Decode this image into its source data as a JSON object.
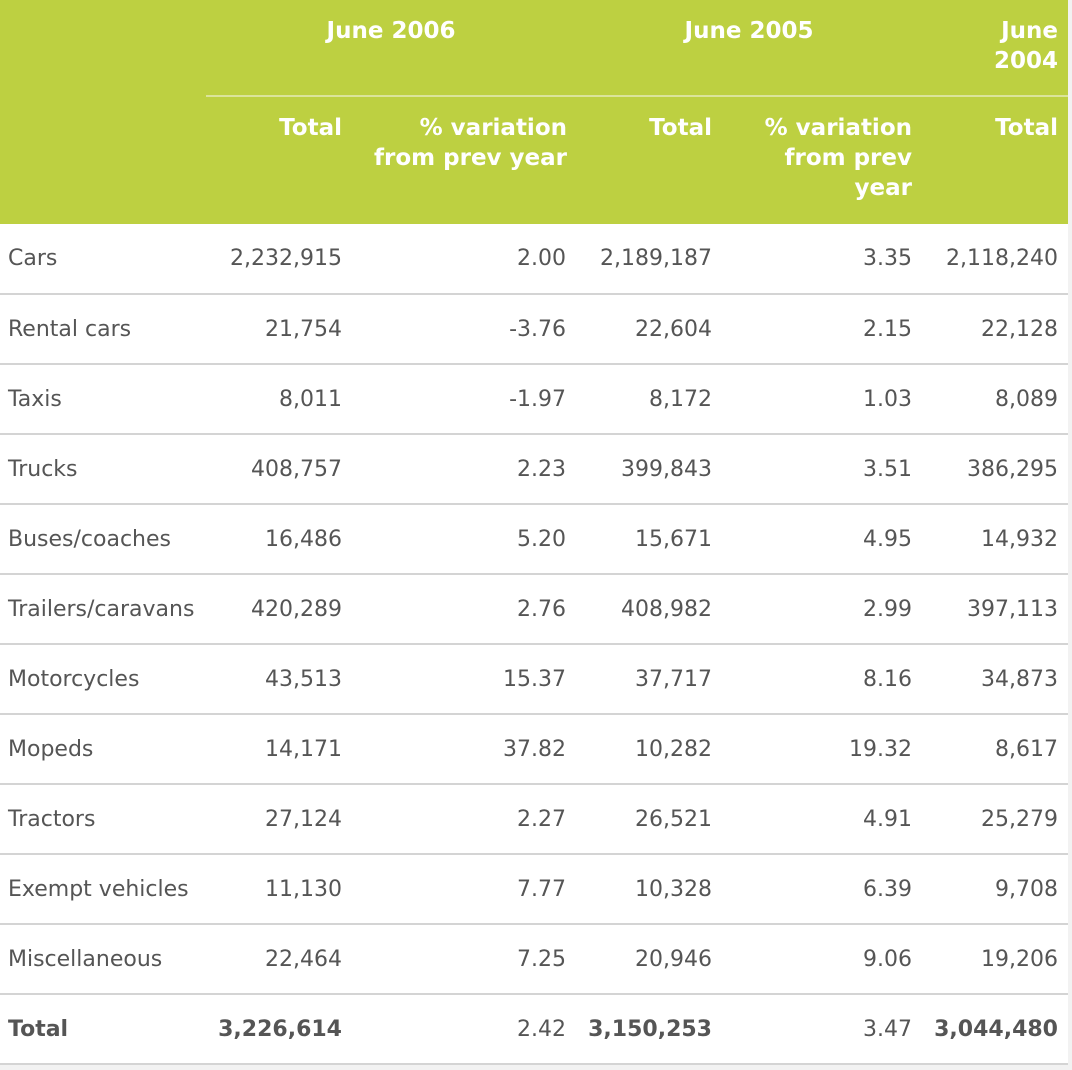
{
  "header": {
    "periods": [
      "June 2006",
      "June 2005",
      "June 2004"
    ],
    "total_label": "Total",
    "variation_label": "% variation from prev year"
  },
  "rows": [
    {
      "label": "Cars",
      "t2006": "2,232,915",
      "v2006": "2.00",
      "t2005": "2,189,187",
      "v2005": "3.35",
      "t2004": "2,118,240"
    },
    {
      "label": "Rental cars",
      "t2006": "21,754",
      "v2006": "-3.76",
      "t2005": "22,604",
      "v2005": "2.15",
      "t2004": "22,128"
    },
    {
      "label": "Taxis",
      "t2006": "8,011",
      "v2006": "-1.97",
      "t2005": "8,172",
      "v2005": "1.03",
      "t2004": "8,089"
    },
    {
      "label": "Trucks",
      "t2006": "408,757",
      "v2006": "2.23",
      "t2005": "399,843",
      "v2005": "3.51",
      "t2004": "386,295"
    },
    {
      "label": "Buses/coaches",
      "t2006": "16,486",
      "v2006": "5.20",
      "t2005": "15,671",
      "v2005": "4.95",
      "t2004": "14,932"
    },
    {
      "label": "Trailers/caravans",
      "t2006": "420,289",
      "v2006": "2.76",
      "t2005": "408,982",
      "v2005": "2.99",
      "t2004": "397,113"
    },
    {
      "label": "Motorcycles",
      "t2006": "43,513",
      "v2006": "15.37",
      "t2005": "37,717",
      "v2005": "8.16",
      "t2004": "34,873"
    },
    {
      "label": "Mopeds",
      "t2006": "14,171",
      "v2006": "37.82",
      "t2005": "10,282",
      "v2005": "19.32",
      "t2004": "8,617"
    },
    {
      "label": "Tractors",
      "t2006": "27,124",
      "v2006": "2.27",
      "t2005": "26,521",
      "v2005": "4.91",
      "t2004": "25,279"
    },
    {
      "label": "Exempt vehicles",
      "t2006": "11,130",
      "v2006": "7.77",
      "t2005": "10,328",
      "v2005": "6.39",
      "t2004": "9,708"
    },
    {
      "label": "Miscellaneous",
      "t2006": "22,464",
      "v2006": "7.25",
      "t2005": "20,946",
      "v2005": "9.06",
      "t2004": "19,206"
    },
    {
      "label": "Total",
      "t2006": "3,226,614",
      "v2006": "2.42",
      "t2005": "3,150,253",
      "v2005": "3.47",
      "t2004": "3,044,480"
    }
  ],
  "colors": {
    "header_bg": "#bdd041",
    "header_text": "#ffffff",
    "body_text": "#555555",
    "row_border": "#d4d4d4"
  }
}
